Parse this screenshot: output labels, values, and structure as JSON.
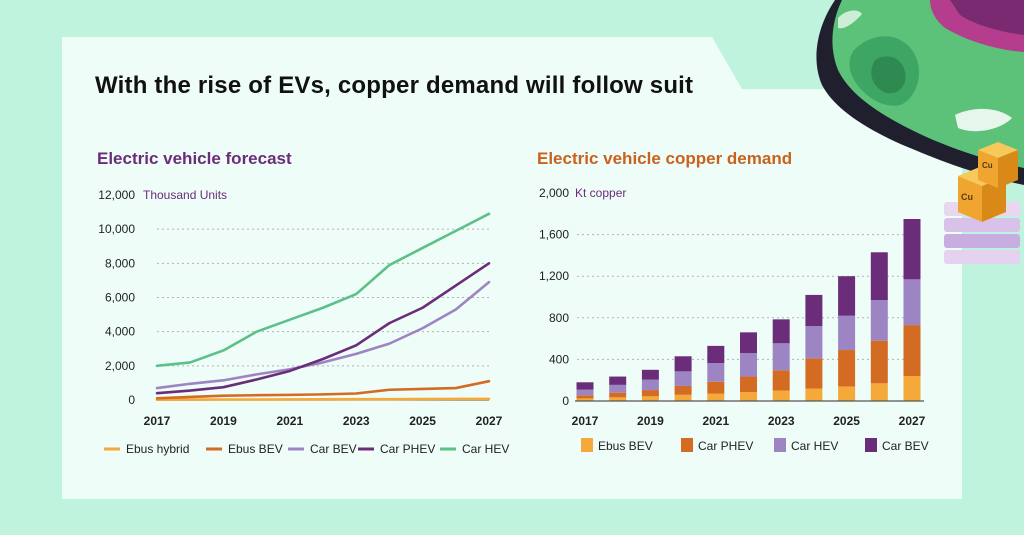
{
  "title": "With the rise of EVs, copper demand will follow suit",
  "colors": {
    "background": "#bff3de",
    "panel": "#eefdf7",
    "ebus_hybrid": "#f4a93a",
    "ebus_bev": "#d46b22",
    "car_bev": "#9d84c2",
    "car_phev": "#6b2d7a",
    "car_hev": "#5cc08a",
    "grid": "#b3b3b3"
  },
  "illustration": {
    "name": "green-car-with-copper-cubes",
    "cube_label": "Cu"
  },
  "chart_data": [
    {
      "type": "line",
      "title": "Electric vehicle forecast",
      "unit_label": "Thousand Units",
      "x": [
        2017,
        2018,
        2019,
        2020,
        2021,
        2022,
        2023,
        2024,
        2025,
        2026,
        2027
      ],
      "x_tick_labels": [
        "2017",
        "2019",
        "2021",
        "2023",
        "2025",
        "2027"
      ],
      "y_tick_labels": [
        "0",
        "2,000",
        "4,000",
        "6,000",
        "8,000",
        "10,000",
        "12,000"
      ],
      "ylim": [
        0,
        12000
      ],
      "grid": true,
      "legend_position": "bottom",
      "series": [
        {
          "name": "Ebus hybrid",
          "color": "#f4a93a",
          "values": [
            20,
            25,
            30,
            30,
            35,
            40,
            45,
            50,
            55,
            60,
            65
          ]
        },
        {
          "name": "Ebus BEV",
          "color": "#d46b22",
          "values": [
            100,
            180,
            250,
            280,
            300,
            330,
            380,
            600,
            650,
            700,
            1100
          ]
        },
        {
          "name": "Car BEV",
          "color": "#9d84c2",
          "values": [
            700,
            950,
            1150,
            1500,
            1800,
            2200,
            2700,
            3300,
            4200,
            5300,
            6900
          ]
        },
        {
          "name": "Car PHEV",
          "color": "#6b2d7a",
          "values": [
            400,
            550,
            750,
            1200,
            1700,
            2400,
            3200,
            4500,
            5400,
            6700,
            8000
          ]
        },
        {
          "name": "Car HEV",
          "color": "#5cc08a",
          "values": [
            2000,
            2200,
            2900,
            4000,
            4700,
            5400,
            6200,
            7900,
            8900,
            9900,
            10900
          ]
        }
      ]
    },
    {
      "type": "bar",
      "stacked": true,
      "title": "Electric vehicle copper demand",
      "unit_label": "Kt copper",
      "categories": [
        "2017",
        "2018",
        "2019",
        "2020",
        "2021",
        "2022",
        "2023",
        "2024",
        "2025",
        "2026",
        "2027"
      ],
      "x_tick_labels": [
        "2017",
        "2019",
        "2021",
        "2023",
        "2025",
        "2027"
      ],
      "y_tick_labels": [
        "0",
        "400",
        "800",
        "1,200",
        "1,600",
        "2,000"
      ],
      "ylim": [
        0,
        2000
      ],
      "grid": true,
      "legend_position": "bottom",
      "series": [
        {
          "name": "Ebus BEV",
          "color": "#f4a93a",
          "values": [
            25,
            35,
            45,
            60,
            70,
            85,
            100,
            120,
            140,
            170,
            240
          ]
        },
        {
          "name": "Car PHEV",
          "color": "#d46b22",
          "values": [
            30,
            45,
            60,
            85,
            115,
            150,
            195,
            290,
            350,
            410,
            490
          ]
        },
        {
          "name": "Car HEV",
          "color": "#9d84c2",
          "values": [
            55,
            75,
            100,
            140,
            180,
            225,
            260,
            310,
            330,
            390,
            440
          ]
        },
        {
          "name": "Car BEV",
          "color": "#6b2d7a",
          "values": [
            70,
            80,
            95,
            145,
            165,
            200,
            230,
            300,
            380,
            460,
            580
          ]
        }
      ]
    }
  ]
}
